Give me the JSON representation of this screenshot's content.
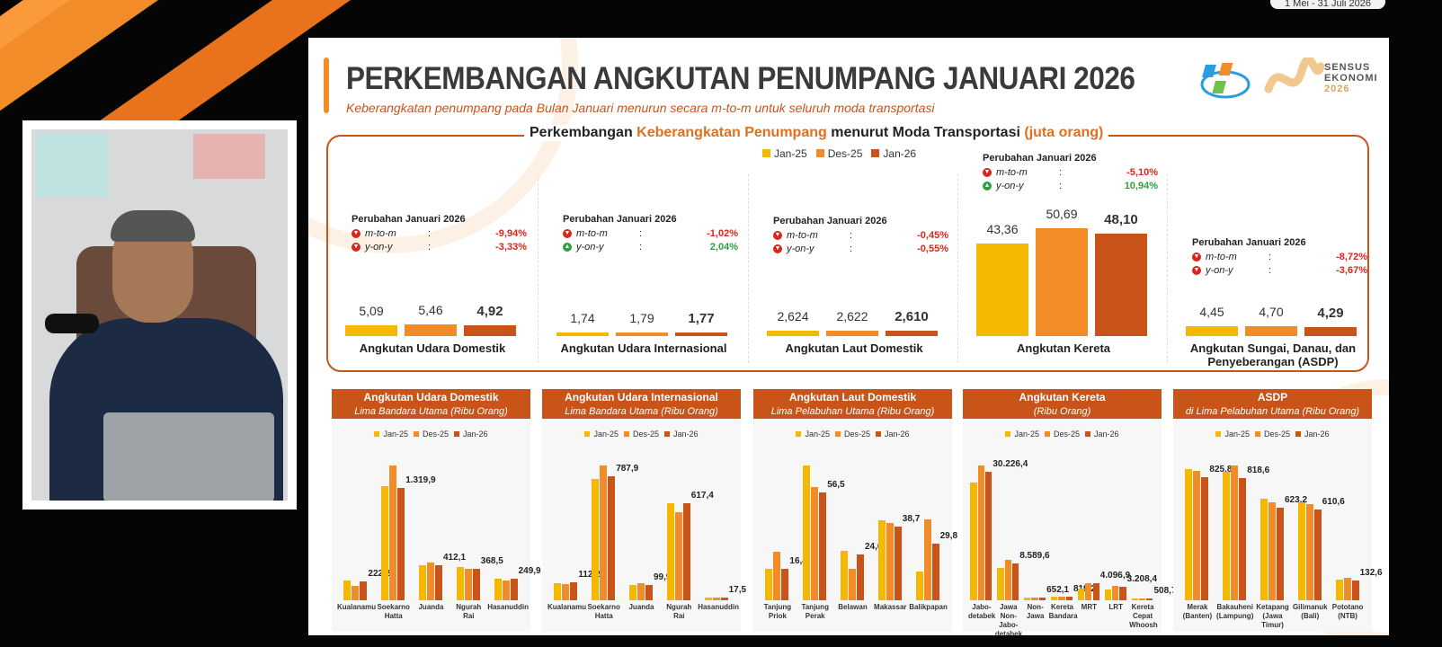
{
  "overlay": {
    "date_range": "1 Mei - 31 Juli 2026"
  },
  "slide": {
    "title": "PERKEMBANGAN ANGKUTAN PENUMPANG JANUARI 2026",
    "subtitle": "Keberangkatan penumpang pada Bulan Januari menurun secara m-to-m untuk seluruh moda transportasi",
    "logo": {
      "text_lines": [
        "SENSUS",
        "EKONOMI",
        "2026"
      ]
    },
    "colors": {
      "jan25": "#f5b800",
      "des25": "#f28c28",
      "jan26": "#c8541a",
      "down": "#d9261c",
      "up": "#2e9e3e"
    },
    "summary": {
      "heading_parts": [
        "Perkembangan ",
        "Keberangkatan Penumpang",
        " menurut Moda Transportasi ",
        "(juta orang)"
      ],
      "legend": [
        "Jan-25",
        "Des-25",
        "Jan-26"
      ],
      "groups": [
        {
          "name": "Angkutan Udara Domestik",
          "values": [
            5.09,
            5.46,
            4.92
          ],
          "labels": [
            "5,09",
            "5,46",
            "4,92"
          ],
          "change_title": "Perubahan Januari 2026",
          "mtm_label": "m-to-m",
          "mtm": "-9,94%",
          "mtm_dir": "down",
          "yoy_label": "y-on-y",
          "yoy": "-3,33%",
          "yoy_dir": "down"
        },
        {
          "name": "Angkutan Udara Internasional",
          "values": [
            1.74,
            1.79,
            1.77
          ],
          "labels": [
            "1,74",
            "1,79",
            "1,77"
          ],
          "change_title": "Perubahan Januari 2026",
          "mtm_label": "m-to-m",
          "mtm": "-1,02%",
          "mtm_dir": "down",
          "yoy_label": "y-on-y",
          "yoy": "2,04%",
          "yoy_dir": "up"
        },
        {
          "name": "Angkutan Laut Domestik",
          "values": [
            2.624,
            2.622,
            2.61
          ],
          "labels": [
            "2,624",
            "2,622",
            "2,610"
          ],
          "change_title": "Perubahan Januari 2026",
          "mtm_label": "m-to-m",
          "mtm": "-0,45%",
          "mtm_dir": "down",
          "yoy_label": "y-on-y",
          "yoy": "-0,55%",
          "yoy_dir": "down"
        },
        {
          "name": "Angkutan Kereta",
          "values": [
            43.36,
            50.69,
            48.1
          ],
          "labels": [
            "43,36",
            "50,69",
            "48,10"
          ],
          "change_title": "Perubahan Januari 2026",
          "mtm_label": "m-to-m",
          "mtm": "-5,10%",
          "mtm_dir": "down",
          "yoy_label": "y-on-y",
          "yoy": "10,94%",
          "yoy_dir": "up"
        },
        {
          "name": "Angkutan Sungai, Danau, dan Penyeberangan (ASDP)",
          "values": [
            4.45,
            4.7,
            4.29
          ],
          "labels": [
            "4,45",
            "4,70",
            "4,29"
          ],
          "change_title": "Perubahan Januari 2026",
          "mtm_label": "m-to-m",
          "mtm": "-8,72%",
          "mtm_dir": "down",
          "yoy_label": "y-on-y",
          "yoy": "-3,67%",
          "yoy_dir": "down"
        }
      ]
    }
  },
  "chart_data": [
    {
      "type": "bar",
      "title": "Angkutan Udara Domestik",
      "subtitle": "Lima Bandara Utama (Ribu Orang)",
      "legend": [
        "Jan-25",
        "Des-25",
        "Jan-26"
      ],
      "categories": [
        "Kualanamu",
        "Soekarno Hatta",
        "Juanda",
        "Ngurah Rai",
        "Hasanuddin"
      ],
      "series": [
        {
          "name": "Jan-25",
          "values": [
            228,
            1344,
            417,
            396,
            250
          ]
        },
        {
          "name": "Des-25",
          "values": [
            170,
            1584,
            448,
            365,
            236
          ]
        },
        {
          "name": "Jan-26",
          "values": [
            222.2,
            1319.9,
            412.1,
            368.5,
            249.9
          ]
        }
      ],
      "data_labels": [
        "222,2",
        "1.319,9",
        "412,1",
        "368,5",
        "249,9"
      ]
    },
    {
      "type": "bar",
      "title": "Angkutan Udara Internasional",
      "subtitle": "Lima Bandara Utama (Ribu Orang)",
      "legend": [
        "Jan-25",
        "Des-25",
        "Jan-26"
      ],
      "categories": [
        "Kualanamu",
        "Soekarno Hatta",
        "Juanda",
        "Ngurah Rai",
        "Hasanuddin"
      ],
      "series": [
        {
          "name": "Jan-25",
          "values": [
            111,
            770,
            95,
            619,
            15
          ]
        },
        {
          "name": "Des-25",
          "values": [
            103,
            858,
            107,
            561,
            16
          ]
        },
        {
          "name": "Jan-26",
          "values": [
            112.2,
            787.9,
            99.9,
            617.4,
            17.5
          ]
        }
      ],
      "data_labels": [
        "112,2",
        "787,9",
        "99,9",
        "617,4",
        "17,5"
      ]
    },
    {
      "type": "bar",
      "title": "Angkutan Laut Domestik",
      "subtitle": "Lima Pelabuhan Utama (Ribu Orang)",
      "legend": [
        "Jan-25",
        "Des-25",
        "Jan-26"
      ],
      "categories": [
        "Tanjung Priok",
        "Tanjung Perak",
        "Belawan",
        "Makassar",
        "Balikpapan"
      ],
      "series": [
        {
          "name": "Jan-25",
          "values": [
            16.3,
            70.8,
            26.0,
            42.1,
            15.2
          ]
        },
        {
          "name": "Des-25",
          "values": [
            25.6,
            59.4,
            16.5,
            40.7,
            42.4
          ]
        },
        {
          "name": "Jan-26",
          "values": [
            16.4,
            56.5,
            24.0,
            38.7,
            29.8
          ]
        }
      ],
      "data_labels": [
        "16,4",
        "56,5",
        "24,0",
        "38,7",
        "29,8"
      ]
    },
    {
      "type": "bar",
      "title": "Angkutan Kereta",
      "subtitle": "(Ribu Orang)",
      "legend": [
        "Jan-25",
        "Des-25",
        "Jan-26"
      ],
      "categories": [
        "Jabo-detabek",
        "Jawa Non-Jabo-detabek",
        "Non-Jawa",
        "Kereta Bandara",
        "MRT",
        "LRT",
        "Kereta Cepat Whoosh"
      ],
      "series": [
        {
          "name": "Jan-25",
          "values": [
            27560,
            7660,
            600,
            780,
            2756,
            2600,
            500
          ]
        },
        {
          "name": "Des-25",
          "values": [
            31640,
            9420,
            640,
            800,
            4100,
            3360,
            520
          ]
        },
        {
          "name": "Jan-26",
          "values": [
            30226.4,
            8589.6,
            652.1,
            819.2,
            4096.9,
            3208.4,
            508.7
          ]
        }
      ],
      "data_labels": [
        "30.226,4",
        "8.589,6",
        "652,1",
        "819,2",
        "4.096,9",
        "3.208,4",
        "508,7"
      ]
    },
    {
      "type": "bar",
      "title": "ASDP",
      "subtitle": "di Lima Pelabuhan Utama (Ribu Orang)",
      "legend": [
        "Jan-25",
        "Des-25",
        "Jan-26"
      ],
      "categories": [
        "Merak (Banten)",
        "Bakauheni (Lampung)",
        "Ketapang (Jawa Timur)",
        "Gilimanuk (Bali)",
        "Pototano (NTB)"
      ],
      "series": [
        {
          "name": "Jan-25",
          "values": [
            880,
            860,
            680,
            655,
            140
          ]
        },
        {
          "name": "Des-25",
          "values": [
            870,
            905,
            660,
            645,
            150
          ]
        },
        {
          "name": "Jan-26",
          "values": [
            825.8,
            818.6,
            623.2,
            610.6,
            132.6
          ]
        }
      ],
      "data_labels": [
        "825,8",
        "818,6",
        "623,2",
        "610,6",
        "132,6"
      ]
    }
  ]
}
